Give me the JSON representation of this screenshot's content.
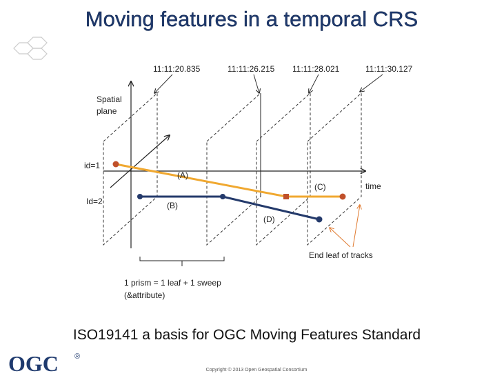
{
  "header": {
    "title": "Moving features in a temporal CRS"
  },
  "diagram": {
    "timestamps": [
      "11:11:20.835",
      "11:11:26.215",
      "11:11:28.021",
      "11:11:30.127"
    ],
    "axis_labels": {
      "spatial": [
        "Spatial",
        "plane"
      ],
      "time": "time"
    },
    "tracks": [
      {
        "id": "id=1",
        "segments": [
          "(A)",
          "(C)"
        ]
      },
      {
        "id": "Id=2",
        "segments": [
          "(B)",
          "(D)"
        ]
      }
    ],
    "end_label": "End leaf of tracks",
    "prism_note": [
      "1 prism = 1 leaf + 1 sweep",
      "(&attribute)"
    ]
  },
  "footer": {
    "subtitle": "ISO19141 a basis for OGC Moving Features Standard",
    "logo": "OGC",
    "logo_mark": "®",
    "copyright": "Copyright © 2013 Open Geospatial Consortium"
  }
}
